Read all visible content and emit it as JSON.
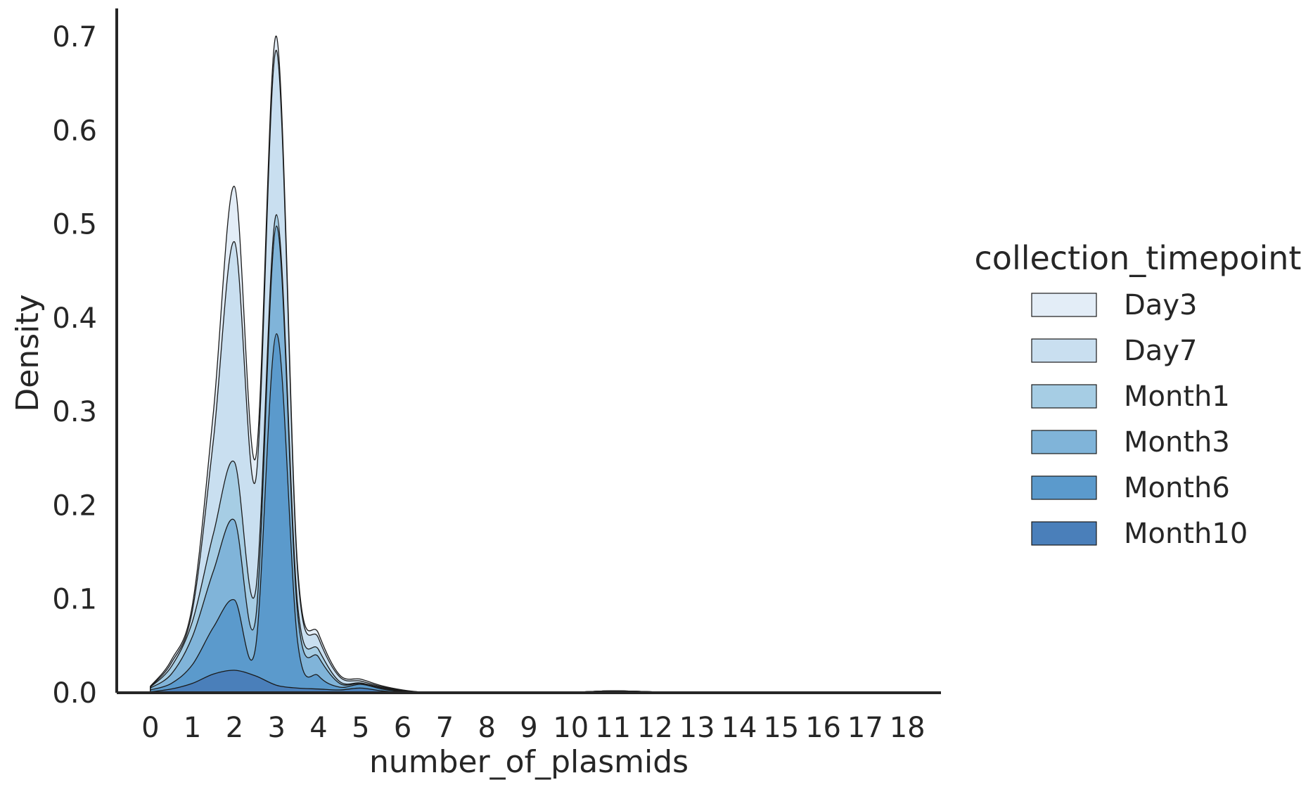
{
  "chart_data": {
    "type": "area",
    "subtype": "stacked kernel density",
    "title": "",
    "xlabel": "number_of_plasmids",
    "ylabel": "Density",
    "xlim": [
      -0.8,
      18.8
    ],
    "ylim": [
      0,
      0.73
    ],
    "x_ticks": [
      "0",
      "1",
      "2",
      "3",
      "4",
      "5",
      "6",
      "7",
      "8",
      "9",
      "10",
      "11",
      "12",
      "13",
      "14",
      "15",
      "16",
      "17",
      "18"
    ],
    "y_ticks": [
      "0.0",
      "0.1",
      "0.2",
      "0.3",
      "0.4",
      "0.5",
      "0.6",
      "0.7"
    ],
    "grid": false,
    "legend": {
      "title": "collection_timepoint",
      "position": "right"
    },
    "x": [
      0,
      0.5,
      1,
      1.5,
      2,
      2.5,
      3,
      3.5,
      4,
      4.5,
      5,
      5.5,
      6,
      6.5,
      7,
      8,
      9,
      10,
      11,
      12,
      13,
      14,
      15,
      16,
      17,
      18
    ],
    "series": [
      {
        "name": "Month10",
        "color": "#4a7fba",
        "values": [
          0.001,
          0.004,
          0.01,
          0.02,
          0.024,
          0.018,
          0.008,
          0.005,
          0.004,
          0.003,
          0.005,
          0.002,
          0.0005,
          0.0003,
          0,
          0,
          0,
          0.0005,
          0.001,
          0.0005,
          0,
          0,
          0,
          0,
          0,
          0
        ]
      },
      {
        "name": "Month6",
        "color": "#5b9acc",
        "values": [
          0.002,
          0.006,
          0.02,
          0.05,
          0.075,
          0.03,
          0.375,
          0.05,
          0.014,
          0.003,
          0.004,
          0.002,
          0.0005,
          0.0003,
          0,
          0,
          0,
          0,
          0.0005,
          0.0005,
          0,
          0,
          0,
          0,
          0,
          0
        ]
      },
      {
        "name": "Month3",
        "color": "#80b4d9",
        "values": [
          0.002,
          0.01,
          0.03,
          0.06,
          0.085,
          0.03,
          0.115,
          0.03,
          0.02,
          0.004,
          0.001,
          0.001,
          0.0005,
          0,
          0,
          0.0005,
          0,
          0,
          0.0005,
          0,
          0,
          0,
          0,
          0,
          0,
          0
        ]
      },
      {
        "name": "Month1",
        "color": "#a6cde4",
        "values": [
          0.001,
          0.008,
          0.016,
          0.04,
          0.062,
          0.03,
          0.012,
          0.01,
          0.008,
          0.002,
          0.0005,
          0.0005,
          0.0005,
          0,
          0,
          0,
          0,
          0,
          0,
          0,
          0,
          0,
          0,
          0,
          0,
          0
        ]
      },
      {
        "name": "Day7",
        "color": "#c9dff0",
        "values": [
          0.0005,
          0.004,
          0.012,
          0.1,
          0.235,
          0.118,
          0.175,
          0.035,
          0.012,
          0.005,
          0.002,
          0.001,
          0.0005,
          0,
          0,
          0,
          0,
          0,
          0,
          0,
          0,
          0,
          0,
          0,
          0,
          0
        ]
      },
      {
        "name": "Day3",
        "color": "#e3edf7",
        "values": [
          0.0005,
          0.003,
          0.006,
          0.03,
          0.059,
          0.024,
          0.015,
          0.005,
          0.005,
          0.002,
          0.002,
          0.001,
          0.0005,
          0,
          0,
          0,
          0,
          0,
          0,
          0,
          0,
          0,
          0,
          0,
          0,
          0
        ]
      }
    ],
    "legend_order": [
      "Day3",
      "Day7",
      "Month1",
      "Month3",
      "Month6",
      "Month10"
    ]
  }
}
